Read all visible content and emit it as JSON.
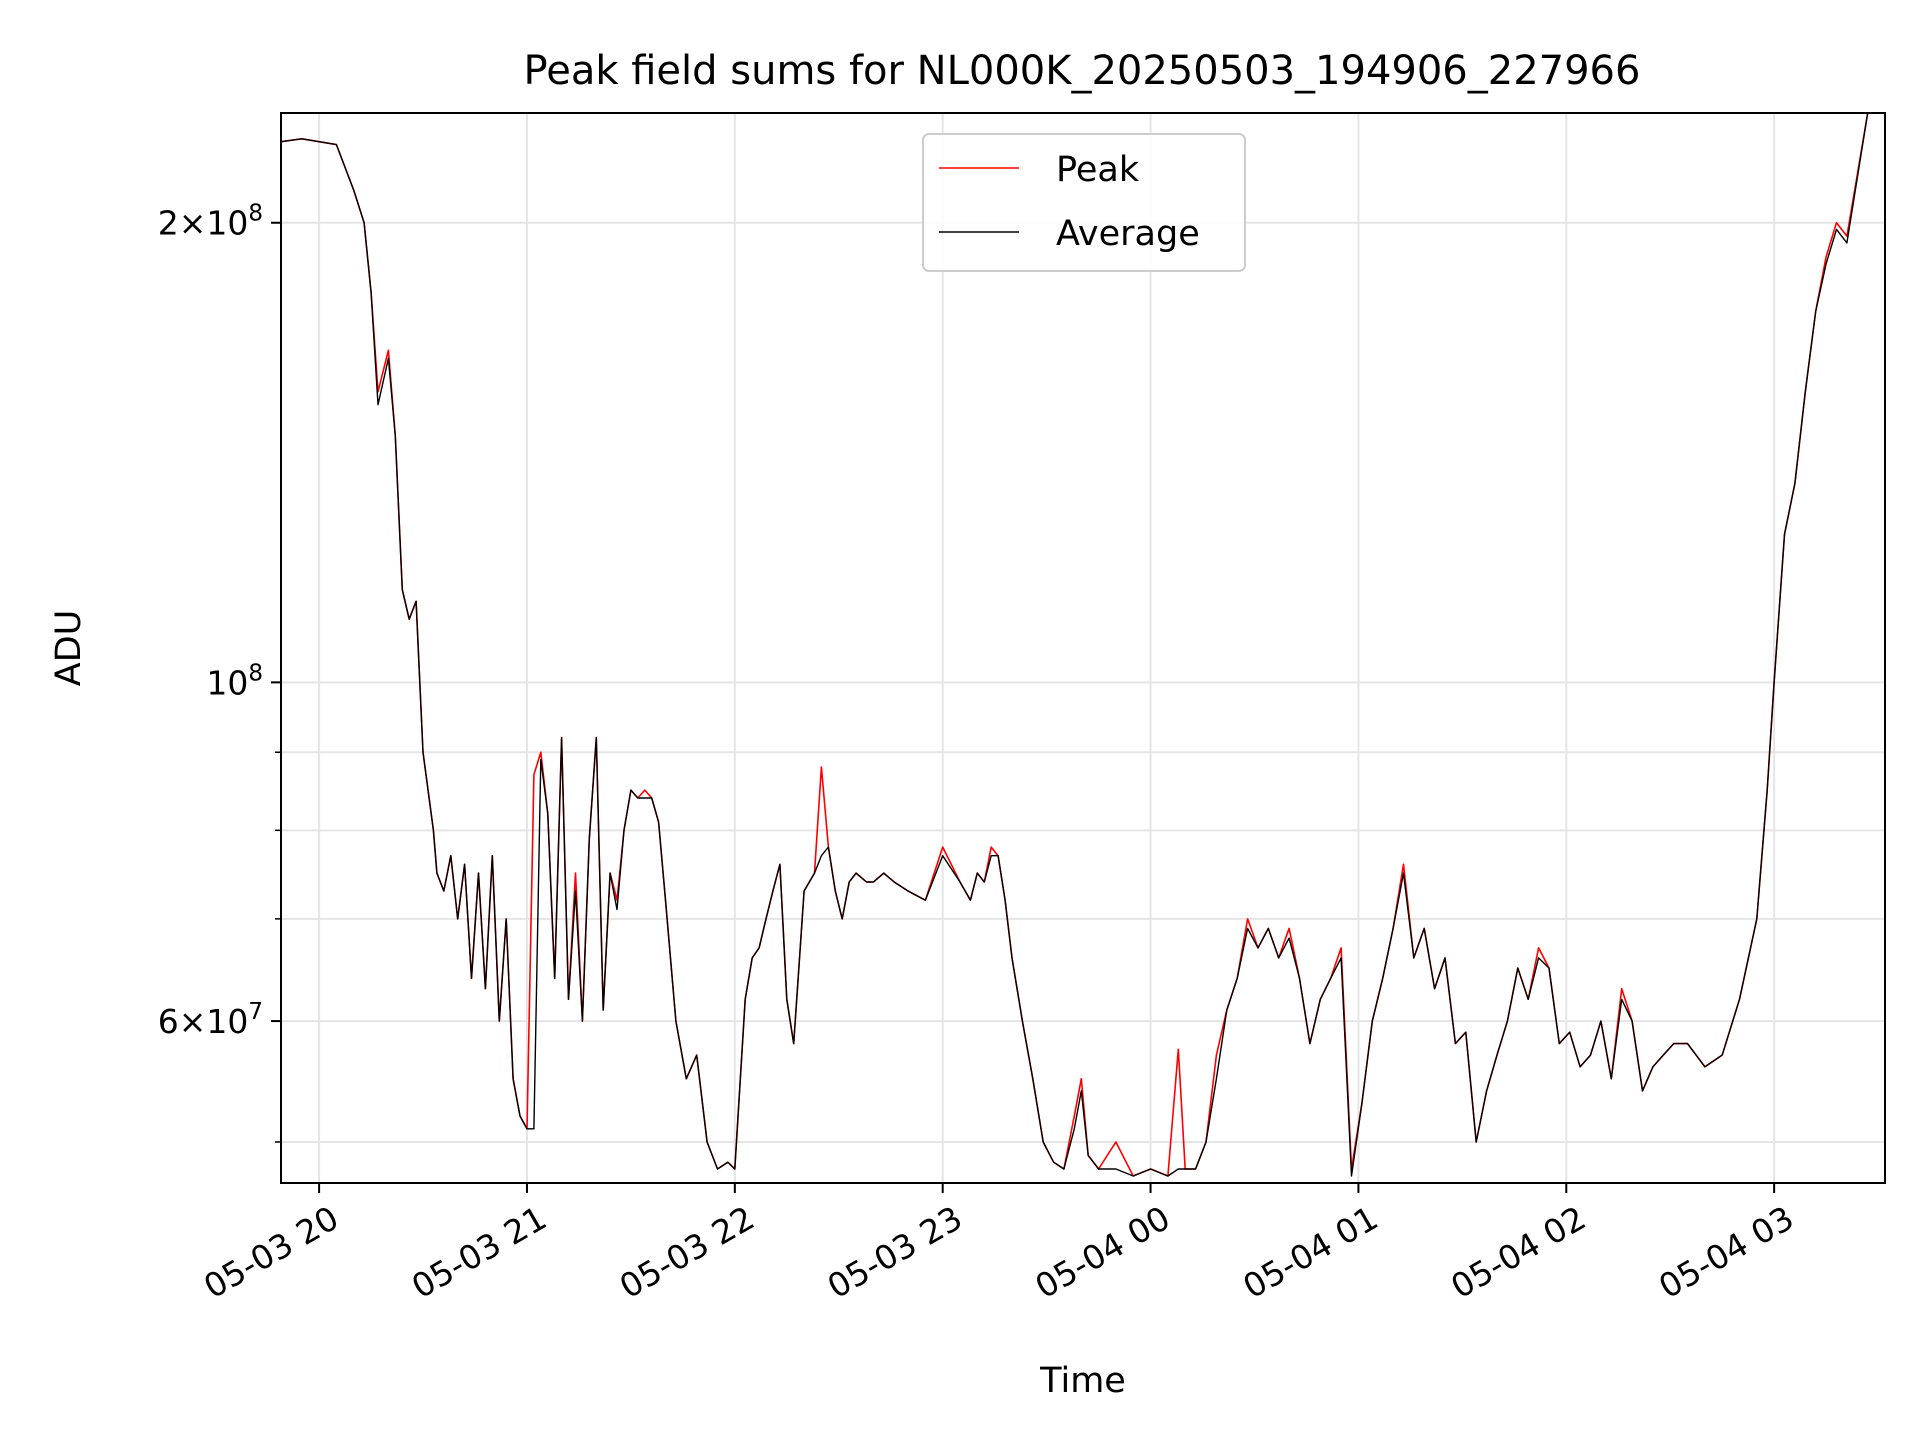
{
  "chart_data": {
    "type": "line",
    "title": "Peak field sums for NL000K_20250503_194906_227966",
    "xlabel": "Time",
    "ylabel": "ADU",
    "y_scale": "log",
    "grid": true,
    "legend_position": "top-center",
    "xlim": [
      "2025-05-03 19:49",
      "2025-05-04 03:32"
    ],
    "ylim": [
      47000000,
      236000000
    ],
    "x_ticks": [
      {
        "value": "2025-05-03 20:00",
        "label": "05-03 20"
      },
      {
        "value": "2025-05-03 21:00",
        "label": "05-03 21"
      },
      {
        "value": "2025-05-03 22:00",
        "label": "05-03 22"
      },
      {
        "value": "2025-05-03 23:00",
        "label": "05-03 23"
      },
      {
        "value": "2025-05-04 00:00",
        "label": "05-04 00"
      },
      {
        "value": "2025-05-04 01:00",
        "label": "05-04 01"
      },
      {
        "value": "2025-05-04 02:00",
        "label": "05-04 02"
      },
      {
        "value": "2025-05-04 03:00",
        "label": "05-04 03"
      }
    ],
    "y_major_ticks": [
      {
        "value": 60000000,
        "mant": "6",
        "exp": "7"
      },
      {
        "value": 100000000,
        "mant": "",
        "exp": "8"
      },
      {
        "value": 200000000,
        "mant": "2",
        "exp": "8"
      }
    ],
    "y_minor_ticks": [
      50000000,
      70000000,
      80000000,
      90000000
    ],
    "times": [
      "2025-05-03 19:49",
      "2025-05-03 19:55",
      "2025-05-03 20:05",
      "2025-05-03 20:10",
      "2025-05-03 20:13",
      "2025-05-03 20:15",
      "2025-05-03 20:17",
      "2025-05-03 20:20",
      "2025-05-03 20:22",
      "2025-05-03 20:24",
      "2025-05-03 20:26",
      "2025-05-03 20:28",
      "2025-05-03 20:30",
      "2025-05-03 20:33",
      "2025-05-03 20:34",
      "2025-05-03 20:36",
      "2025-05-03 20:38",
      "2025-05-03 20:40",
      "2025-05-03 20:42",
      "2025-05-03 20:44",
      "2025-05-03 20:46",
      "2025-05-03 20:48",
      "2025-05-03 20:50",
      "2025-05-03 20:52",
      "2025-05-03 20:54",
      "2025-05-03 20:56",
      "2025-05-03 20:58",
      "2025-05-03 21:00",
      "2025-05-03 21:02",
      "2025-05-03 21:04",
      "2025-05-03 21:06",
      "2025-05-03 21:08",
      "2025-05-03 21:10",
      "2025-05-03 21:12",
      "2025-05-03 21:14",
      "2025-05-03 21:16",
      "2025-05-03 21:18",
      "2025-05-03 21:20",
      "2025-05-03 21:22",
      "2025-05-03 21:24",
      "2025-05-03 21:26",
      "2025-05-03 21:28",
      "2025-05-03 21:30",
      "2025-05-03 21:32",
      "2025-05-03 21:34",
      "2025-05-03 21:36",
      "2025-05-03 21:38",
      "2025-05-03 21:40",
      "2025-05-03 21:43",
      "2025-05-03 21:46",
      "2025-05-03 21:49",
      "2025-05-03 21:52",
      "2025-05-03 21:55",
      "2025-05-03 21:58",
      "2025-05-03 22:00",
      "2025-05-03 22:03",
      "2025-05-03 22:05",
      "2025-05-03 22:07",
      "2025-05-03 22:09",
      "2025-05-03 22:11",
      "2025-05-03 22:13",
      "2025-05-03 22:15",
      "2025-05-03 22:17",
      "2025-05-03 22:20",
      "2025-05-03 22:23",
      "2025-05-03 22:25",
      "2025-05-03 22:27",
      "2025-05-03 22:29",
      "2025-05-03 22:31",
      "2025-05-03 22:33",
      "2025-05-03 22:35",
      "2025-05-03 22:38",
      "2025-05-03 22:40",
      "2025-05-03 22:43",
      "2025-05-03 22:46",
      "2025-05-03 22:50",
      "2025-05-03 22:55",
      "2025-05-03 23:00",
      "2025-05-03 23:05",
      "2025-05-03 23:08",
      "2025-05-03 23:10",
      "2025-05-03 23:12",
      "2025-05-03 23:14",
      "2025-05-03 23:16",
      "2025-05-03 23:18",
      "2025-05-03 23:20",
      "2025-05-03 23:23",
      "2025-05-03 23:26",
      "2025-05-03 23:29",
      "2025-05-03 23:32",
      "2025-05-03 23:35",
      "2025-05-03 23:38",
      "2025-05-03 23:40",
      "2025-05-03 23:42",
      "2025-05-03 23:45",
      "2025-05-03 23:50",
      "2025-05-03 23:55",
      "2025-05-04 00:00",
      "2025-05-04 00:05",
      "2025-05-04 00:08",
      "2025-05-04 00:10",
      "2025-05-04 00:13",
      "2025-05-04 00:16",
      "2025-05-04 00:19",
      "2025-05-04 00:22",
      "2025-05-04 00:25",
      "2025-05-04 00:28",
      "2025-05-04 00:31",
      "2025-05-04 00:34",
      "2025-05-04 00:37",
      "2025-05-04 00:40",
      "2025-05-04 00:43",
      "2025-05-04 00:46",
      "2025-05-04 00:49",
      "2025-05-04 00:52",
      "2025-05-04 00:55",
      "2025-05-04 00:58",
      "2025-05-04 01:01",
      "2025-05-04 01:04",
      "2025-05-04 01:07",
      "2025-05-04 01:10",
      "2025-05-04 01:13",
      "2025-05-04 01:16",
      "2025-05-04 01:19",
      "2025-05-04 01:22",
      "2025-05-04 01:25",
      "2025-05-04 01:28",
      "2025-05-04 01:31",
      "2025-05-04 01:34",
      "2025-05-04 01:37",
      "2025-05-04 01:40",
      "2025-05-04 01:43",
      "2025-05-04 01:46",
      "2025-05-04 01:49",
      "2025-05-04 01:52",
      "2025-05-04 01:55",
      "2025-05-04 01:58",
      "2025-05-04 02:01",
      "2025-05-04 02:04",
      "2025-05-04 02:07",
      "2025-05-04 02:10",
      "2025-05-04 02:13",
      "2025-05-04 02:16",
      "2025-05-04 02:19",
      "2025-05-04 02:22",
      "2025-05-04 02:25",
      "2025-05-04 02:28",
      "2025-05-04 02:31",
      "2025-05-04 02:35",
      "2025-05-04 02:40",
      "2025-05-04 02:45",
      "2025-05-04 02:50",
      "2025-05-04 02:55",
      "2025-05-04 02:58",
      "2025-05-04 03:00",
      "2025-05-04 03:03",
      "2025-05-04 03:06",
      "2025-05-04 03:09",
      "2025-05-04 03:12",
      "2025-05-04 03:15",
      "2025-05-04 03:18",
      "2025-05-04 03:21",
      "2025-05-04 03:24",
      "2025-05-04 03:27"
    ],
    "series": [
      {
        "name": "Peak",
        "color": "#ff0000",
        "values": [
          226000000,
          227000000,
          225000000,
          210000000,
          200000000,
          180000000,
          155000000,
          165000000,
          145000000,
          115000000,
          110000000,
          113000000,
          90000000,
          80000000,
          75000000,
          73000000,
          77000000,
          70000000,
          76000000,
          64000000,
          75000000,
          63000000,
          77000000,
          60000000,
          70000000,
          55000000,
          52000000,
          51000000,
          87000000,
          90000000,
          82000000,
          64000000,
          92000000,
          62000000,
          75000000,
          60000000,
          79000000,
          92000000,
          61000000,
          75000000,
          72000000,
          80000000,
          85000000,
          84000000,
          85000000,
          84000000,
          81000000,
          72000000,
          60000000,
          55000000,
          57000000,
          50000000,
          48000000,
          48500000,
          48000000,
          62000000,
          66000000,
          67000000,
          70000000,
          73000000,
          76000000,
          62000000,
          58000000,
          73000000,
          75000000,
          88000000,
          78000000,
          73000000,
          70000000,
          74000000,
          75000000,
          74000000,
          74000000,
          75000000,
          74000000,
          73000000,
          72000000,
          78000000,
          74000000,
          72000000,
          75000000,
          74000000,
          78000000,
          77000000,
          72000000,
          66000000,
          60000000,
          55000000,
          50000000,
          48500000,
          48000000,
          52000000,
          55000000,
          49000000,
          48000000,
          50000000,
          47500000,
          48000000,
          47500000,
          57500000,
          48000000,
          48000000,
          50000000,
          57000000,
          61000000,
          64000000,
          70000000,
          67000000,
          69000000,
          66000000,
          69000000,
          64000000,
          58000000,
          62000000,
          64000000,
          67000000,
          48000000,
          53000000,
          60000000,
          64000000,
          69000000,
          76000000,
          66000000,
          69000000,
          63000000,
          66000000,
          58000000,
          59000000,
          50000000,
          54000000,
          57000000,
          60000000,
          65000000,
          62000000,
          67000000,
          65000000,
          58000000,
          59000000,
          56000000,
          57000000,
          60000000,
          55000000,
          63000000,
          60000000,
          54000000,
          56000000,
          57000000,
          58000000,
          58000000,
          56000000,
          57000000,
          62000000,
          70000000,
          85000000,
          100000000,
          125000000,
          135000000,
          155000000,
          175000000,
          190000000,
          200000000,
          196000000,
          215000000,
          236000000
        ]
      },
      {
        "name": "Average",
        "color": "#000000",
        "values": [
          226000000,
          227000000,
          225000000,
          210000000,
          200000000,
          180000000,
          152000000,
          163000000,
          145000000,
          115000000,
          110000000,
          113000000,
          90000000,
          80000000,
          75000000,
          73000000,
          77000000,
          70000000,
          76000000,
          64000000,
          75000000,
          63000000,
          77000000,
          60000000,
          70000000,
          55000000,
          52000000,
          51000000,
          51000000,
          89000000,
          82000000,
          64000000,
          92000000,
          62000000,
          73000000,
          60000000,
          79000000,
          92000000,
          61000000,
          75000000,
          71000000,
          80000000,
          85000000,
          84000000,
          84000000,
          84000000,
          81000000,
          72000000,
          60000000,
          55000000,
          57000000,
          50000000,
          48000000,
          48500000,
          48000000,
          62000000,
          66000000,
          67000000,
          70000000,
          73000000,
          76000000,
          62000000,
          58000000,
          73000000,
          75000000,
          77000000,
          78000000,
          73000000,
          70000000,
          74000000,
          75000000,
          74000000,
          74000000,
          75000000,
          74000000,
          73000000,
          72000000,
          77000000,
          74000000,
          72000000,
          75000000,
          74000000,
          77000000,
          77000000,
          72000000,
          66000000,
          60000000,
          55000000,
          50000000,
          48500000,
          48000000,
          51000000,
          54000000,
          49000000,
          48000000,
          48000000,
          47500000,
          48000000,
          47500000,
          48000000,
          48000000,
          48000000,
          50000000,
          55000000,
          61000000,
          64000000,
          69000000,
          67000000,
          69000000,
          66000000,
          68000000,
          64000000,
          58000000,
          62000000,
          64000000,
          66000000,
          47500000,
          53000000,
          60000000,
          64000000,
          69000000,
          75000000,
          66000000,
          69000000,
          63000000,
          66000000,
          58000000,
          59000000,
          50000000,
          54000000,
          57000000,
          60000000,
          65000000,
          62000000,
          66000000,
          65000000,
          58000000,
          59000000,
          56000000,
          57000000,
          60000000,
          55000000,
          62000000,
          60000000,
          54000000,
          56000000,
          57000000,
          58000000,
          58000000,
          56000000,
          57000000,
          62000000,
          70000000,
          85000000,
          100000000,
          125000000,
          135000000,
          155000000,
          175000000,
          188000000,
          198000000,
          194000000,
          214000000,
          236000000
        ]
      }
    ]
  }
}
